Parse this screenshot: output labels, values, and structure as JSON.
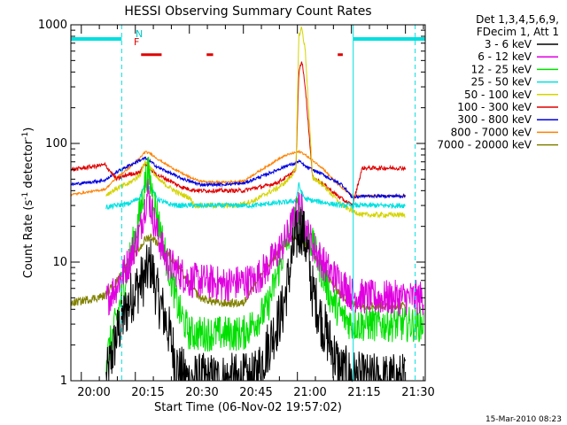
{
  "chart_data": {
    "type": "line",
    "title": "HESSI Observing Summary Count Rates",
    "xlabel": "Start Time (06-Nov-02 19:57:02)",
    "ylabel_main": "Count Rate (s",
    "ylabel_sup1": "-1",
    "ylabel_mid": " detector",
    "ylabel_sup2": "-1",
    "ylabel_end": ")",
    "yscale": "log",
    "ylim": [
      1,
      1000
    ],
    "xlim_minutes": [
      -2.9,
      95.5
    ],
    "x_ticks": [
      {
        "m": 0,
        "label": "20:00"
      },
      {
        "m": 15,
        "label": "20:15"
      },
      {
        "m": 30,
        "label": "20:30"
      },
      {
        "m": 45,
        "label": "20:45"
      },
      {
        "m": 60,
        "label": "21:00"
      },
      {
        "m": 75,
        "label": "21:15"
      },
      {
        "m": 90,
        "label": "21:30"
      }
    ],
    "y_tick_labels": [
      "1",
      "10",
      "100",
      "1000"
    ],
    "legend_header": [
      "Det 1,3,4,5,6,9,",
      "FDecim 1, Att 1"
    ],
    "series": [
      {
        "name": "3 - 6 keV",
        "color": "#000000",
        "x": [
          6.9,
          9.8,
          14.1,
          17.7,
          19.3,
          20.9,
          23.8,
          27,
          30,
          33.1,
          48,
          56,
          58,
          59.6,
          61.2,
          62.8,
          64,
          67,
          72,
          78,
          90
        ],
        "y": [
          1,
          2.4,
          5.3,
          7.5,
          9.8,
          5.5,
          3,
          1.2,
          1,
          1,
          1,
          4,
          9,
          16,
          20,
          12,
          6,
          3,
          1.2,
          1,
          1
        ]
      },
      {
        "name": "6 - 12 keV",
        "color": "#e000e0",
        "x": [
          6.9,
          10,
          13.2,
          16.2,
          17.7,
          18.5,
          19.3,
          21.2,
          23.8,
          30,
          33,
          39.5,
          48,
          51.5,
          54.5,
          57,
          59.6,
          60.4,
          61.2,
          62.2,
          64.2,
          67,
          69.3,
          72.4,
          75.3,
          81,
          95
        ],
        "y": [
          4.7,
          6.5,
          10,
          18,
          30,
          40,
          29,
          17,
          10,
          7,
          7,
          6.5,
          7,
          9,
          12,
          16,
          25,
          30,
          27,
          19,
          14,
          10,
          8,
          6.7,
          5.3,
          5,
          5
        ]
      },
      {
        "name": "12 - 25 keV",
        "color": "#00e000",
        "x": [
          6.9,
          10,
          13.2,
          16.2,
          17.7,
          18.5,
          19.3,
          21.2,
          23.8,
          27,
          30,
          45,
          51.5,
          54.5,
          57,
          59.6,
          60.4,
          61.2,
          62.2,
          64.2,
          67,
          69.3,
          72.4,
          75.3,
          81,
          95
        ],
        "y": [
          1.5,
          3.5,
          10,
          25,
          47,
          58,
          45,
          24,
          10,
          4,
          2.5,
          2.5,
          4,
          8,
          15,
          25,
          30,
          27,
          19,
          14,
          8,
          5,
          3.5,
          3,
          3,
          3
        ]
      },
      {
        "name": "25 - 50 keV",
        "color": "#00e0e0",
        "x": [
          6.9,
          9.8,
          13.2,
          16.2,
          17.7,
          19.3,
          21.2,
          23.8,
          27,
          30,
          36,
          43,
          48,
          51.5,
          54.5,
          57,
          59.6,
          60.4,
          61.2,
          62.2,
          64,
          67,
          69.3,
          72.4,
          75.3,
          78,
          90
        ],
        "y": [
          29,
          30,
          31,
          35,
          45,
          42,
          34,
          31,
          30,
          30,
          30,
          30,
          30,
          31,
          31.5,
          32,
          33,
          45,
          38,
          34,
          33,
          32,
          31,
          30,
          30,
          30,
          30
        ]
      },
      {
        "name": "50 - 100 keV",
        "color": "#d4d400",
        "x": [
          6.9,
          10,
          13.2,
          16.2,
          17.7,
          19.3,
          21.2,
          23.8,
          27,
          30,
          31.5,
          37,
          43,
          48,
          51.5,
          54.5,
          57,
          59.6,
          60.4,
          61.2,
          62.2,
          64.2,
          67,
          69.3,
          72.4,
          75.3,
          78,
          90
        ],
        "y": [
          37,
          42,
          46,
          54,
          70,
          62,
          50,
          44,
          38,
          35,
          30,
          30,
          30,
          33,
          38,
          42,
          48,
          60,
          800,
          950,
          600,
          52,
          45,
          38,
          30,
          27,
          25,
          25
        ]
      },
      {
        "name": "100 - 300 keV",
        "color": "#e00000",
        "x": [
          -2.9,
          6.6,
          9.8,
          13.2,
          16.2,
          17.7,
          19.3,
          21.2,
          23.8,
          27,
          30,
          33,
          38,
          45,
          48,
          51.5,
          54.5,
          57,
          59.6,
          60.4,
          61.2,
          62.2,
          64.2,
          67,
          69.3,
          72.4,
          75.3,
          78,
          90
        ],
        "y": [
          60,
          66,
          50,
          55,
          57,
          68,
          60,
          54,
          50,
          44,
          41,
          40,
          40,
          40,
          42,
          44,
          47,
          52,
          60,
          400,
          500,
          300,
          52,
          46,
          40,
          34,
          30,
          62,
          62
        ]
      },
      {
        "name": "300 - 800 keV",
        "color": "#0000e0",
        "x": [
          -2.9,
          6.6,
          10,
          13.2,
          16.2,
          17.7,
          19.3,
          21.2,
          23.8,
          27,
          30,
          33,
          38,
          45,
          48,
          51.5,
          54.5,
          57,
          59.6,
          60.4,
          61.2,
          62.2,
          64.2,
          67,
          69.3,
          72.4,
          75.3,
          78,
          90
        ],
        "y": [
          45,
          49,
          58,
          65,
          72,
          75,
          70,
          63,
          58,
          52,
          48,
          45,
          45,
          46,
          50,
          55,
          60,
          65,
          68,
          71,
          68,
          64,
          60,
          55,
          50,
          45,
          35,
          36,
          36
        ]
      },
      {
        "name": "800 - 7000 keV",
        "color": "#ff8000",
        "x": [
          -2.9,
          6.6,
          10,
          13.2,
          16.2,
          17.7,
          19.3,
          21.2,
          23.8,
          27,
          30,
          33,
          38,
          45,
          48,
          51.5,
          54.5,
          57,
          59.6,
          60.4,
          61.2,
          62.2,
          64.2,
          67,
          69.3,
          72.4,
          75.3,
          78,
          90
        ],
        "y": [
          37,
          41,
          52,
          62,
          75,
          85,
          82,
          74,
          66,
          58,
          52,
          48,
          47,
          48,
          55,
          64,
          73,
          80,
          84,
          85,
          84,
          80,
          72,
          62,
          52,
          42,
          36,
          36,
          36
        ]
      },
      {
        "name": "7000 - 20000 keV",
        "color": "#808000",
        "x": [
          -2.9,
          6.6,
          10,
          13.2,
          16.2,
          17.7,
          19.3,
          21.2,
          23.8,
          27,
          30,
          33,
          38,
          45,
          48,
          51.5,
          54.5,
          57,
          59.6,
          60.4,
          61.2,
          62.2,
          64.2,
          67,
          69.3,
          72.4,
          75.3,
          78,
          90
        ],
        "y": [
          4.5,
          5.2,
          7,
          10,
          13,
          15.5,
          16.5,
          14.5,
          12,
          9,
          6.5,
          5,
          4.5,
          4.5,
          6.5,
          9,
          12,
          14.5,
          16,
          16.5,
          15.5,
          14,
          12,
          9,
          6.8,
          5.2,
          4.4,
          4.3,
          4.3
        ]
      }
    ],
    "flags": {
      "night_level": 760,
      "night_segments": [
        [
          -2.9,
          11.2
        ],
        [
          75.5,
          95.5
        ]
      ],
      "flare_flag_text": "F",
      "flare_flag_level": 560,
      "flare_segments": [
        [
          16.6,
          22.3
        ],
        [
          34.8,
          36.6
        ],
        [
          71.2,
          72.6
        ]
      ],
      "n_label": "N",
      "dashed_lines_minutes": [
        11.2,
        92.7
      ],
      "solid_lines_minutes": [
        75.5
      ]
    }
  },
  "footer": {
    "timestamp": "15-Mar-2010 08:23"
  }
}
